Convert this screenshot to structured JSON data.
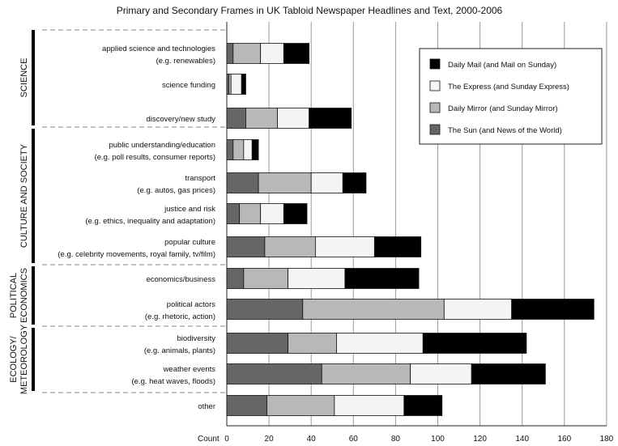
{
  "chart_data": {
    "type": "bar",
    "orientation": "horizontal",
    "stacked": true,
    "title": "Primary and Secondary Frames in UK Tabloid Newspaper Headlines and Text, 2000-2006",
    "xlabel": "Count",
    "xlim": [
      0,
      180
    ],
    "xticks": [
      0,
      20,
      40,
      60,
      80,
      100,
      120,
      140,
      160,
      180
    ],
    "grid": "vertical",
    "legend_position": "top-right",
    "colors": {
      "The Sun (and News of the World)": "#666666",
      "Daily Mirror (and Sunday Mirror)": "#b8b8b8",
      "The Express (and Sunday Express)": "#f4f4f4",
      "Daily Mail (and Mail on Sunday)": "#000000"
    },
    "legend_order": [
      "Daily Mail (and Mail on Sunday)",
      "The Express (and Sunday Express)",
      "Daily Mirror (and Sunday Mirror)",
      "The Sun (and News of the World)"
    ],
    "groups": [
      {
        "name": "SCIENCE",
        "categories": [
          0,
          1,
          2
        ]
      },
      {
        "name": "CULTURE AND SOCIETY",
        "categories": [
          3,
          4,
          5,
          6
        ]
      },
      {
        "name": "POLITICAL ECONOMICS",
        "categories": [
          7,
          8
        ]
      },
      {
        "name": "ECOLOGY/ METEOROLOGY",
        "categories": [
          9,
          10
        ]
      }
    ],
    "categories": [
      {
        "line1": "applied science and technologies",
        "line2": "(e.g. renewables)"
      },
      {
        "line1": "science funding",
        "line2": ""
      },
      {
        "line1": "discovery/new study",
        "line2": ""
      },
      {
        "line1": "public understanding/education",
        "line2": "(e.g. poll results, consumer reports)"
      },
      {
        "line1": "transport",
        "line2": "(e.g. autos, gas prices)"
      },
      {
        "line1": "justice and risk",
        "line2": "(e.g. ethics, inequality and adaptation)"
      },
      {
        "line1": "popular culture",
        "line2": "(e.g. celebrity movements, royal family, tv/film)"
      },
      {
        "line1": "economics/business",
        "line2": ""
      },
      {
        "line1": "political actors",
        "line2": "(e.g. rhetoric, action)"
      },
      {
        "line1": "biodiversity",
        "line2": "(e.g. animals, plants)"
      },
      {
        "line1": "weather events",
        "line2": "(e.g. heat waves, floods)"
      },
      {
        "line1": "other",
        "line2": ""
      }
    ],
    "series": [
      {
        "name": "The Sun (and News of the World)",
        "values": [
          3,
          1,
          9,
          3,
          15,
          6,
          18,
          8,
          36,
          29,
          45,
          19
        ]
      },
      {
        "name": "Daily Mirror (and Sunday Mirror)",
        "values": [
          13,
          1,
          15,
          5,
          25,
          10,
          24,
          21,
          67,
          23,
          42,
          32
        ]
      },
      {
        "name": "The Express (and Sunday Express)",
        "values": [
          11,
          5,
          15,
          4,
          15,
          11,
          28,
          27,
          32,
          41,
          29,
          33
        ]
      },
      {
        "name": "Daily Mail (and Mail on Sunday)",
        "values": [
          12,
          2,
          20,
          3,
          11,
          11,
          22,
          35,
          39,
          49,
          35,
          18
        ]
      }
    ]
  }
}
